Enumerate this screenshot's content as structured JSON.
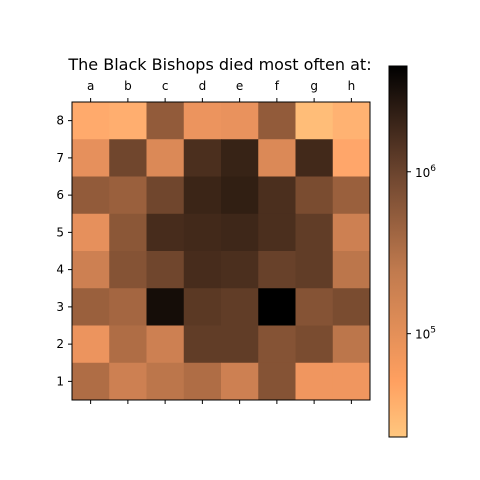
{
  "chart_data": {
    "type": "heatmap",
    "title": "The Black Bishops died most often at:",
    "xlabel": "",
    "ylabel": "",
    "columns": [
      "a",
      "b",
      "c",
      "d",
      "e",
      "f",
      "g",
      "h"
    ],
    "rows": [
      "8",
      "7",
      "6",
      "5",
      "4",
      "3",
      "2",
      "1"
    ],
    "values": [
      [
        50000,
        45000,
        400000,
        90000,
        95000,
        400000,
        30000,
        40000
      ],
      [
        100000,
        700000,
        120000,
        1300000,
        1800000,
        120000,
        1500000,
        55000
      ],
      [
        400000,
        350000,
        700000,
        1700000,
        2000000,
        1300000,
        600000,
        350000
      ],
      [
        100000,
        450000,
        1400000,
        1500000,
        1600000,
        1300000,
        900000,
        150000
      ],
      [
        150000,
        500000,
        700000,
        1400000,
        1300000,
        800000,
        900000,
        200000
      ],
      [
        350000,
        300000,
        3200000,
        1000000,
        900000,
        4500000,
        500000,
        600000
      ],
      [
        90000,
        250000,
        150000,
        900000,
        900000,
        500000,
        600000,
        200000
      ],
      [
        250000,
        150000,
        200000,
        250000,
        150000,
        500000,
        85000,
        85000
      ]
    ],
    "colorbar": {
      "scale": "log",
      "range": [
        23000,
        4500000
      ],
      "ticks": [
        {
          "value": 100000,
          "label": "10^5"
        },
        {
          "value": 1000000,
          "label": "10^6"
        }
      ],
      "colormap": "copper_r"
    },
    "x_ticks_position": "top",
    "grid": false
  }
}
